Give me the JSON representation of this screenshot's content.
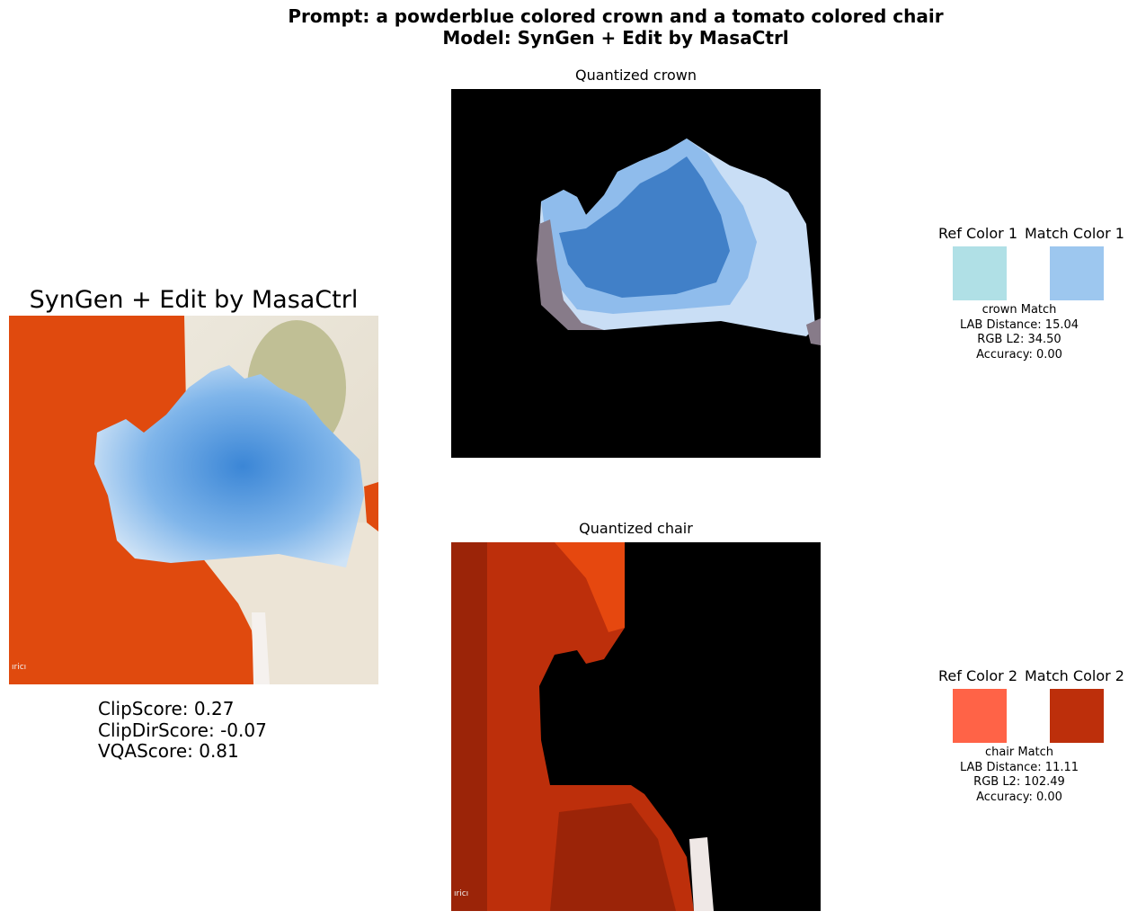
{
  "figure": {
    "title_line1": "Prompt: a powderblue colored crown and a tomato colored chair",
    "title_line2": "Model: SynGen + Edit by MasaCtrl"
  },
  "main_panel": {
    "title": "SynGen + Edit by MasaCtrl",
    "image_watermark": "ıricı"
  },
  "scores": {
    "clip": "ClipScore: 0.27",
    "clip_dir": "ClipDirScore: -0.07",
    "vqa": "VQAScore: 0.81"
  },
  "crown": {
    "panel_title": "Quantized crown",
    "ref_header": "Ref Color 1",
    "match_header": "Match Color 1",
    "ref_color": "#b0e0e6",
    "match_color": "#9dc7ef",
    "label": "crown Match",
    "lab": "LAB Distance: 15.04",
    "rgb": "RGB L2: 34.50",
    "acc": "Accuracy: 0.00"
  },
  "chair": {
    "panel_title": "Quantized chair",
    "ref_header": "Ref Color 2",
    "match_header": "Match Color 2",
    "ref_color": "#ff6347",
    "match_color": "#bd2f0b",
    "label": "chair Match",
    "lab": "LAB Distance: 11.11",
    "rgb": "RGB L2: 102.49",
    "acc": "Accuracy: 0.00"
  }
}
